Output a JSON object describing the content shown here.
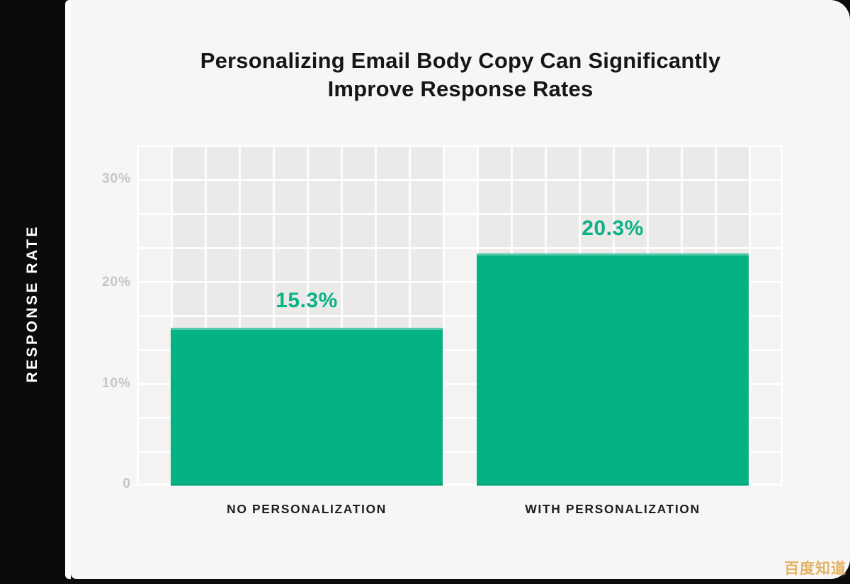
{
  "title": {
    "line1": "Personalizing Email Body Copy Can Significantly",
    "line2": "Improve Response Rates"
  },
  "y_axis": {
    "label": "RESPONSE RATE",
    "ticks": [
      {
        "label": "30%"
      },
      {
        "label": "20%"
      },
      {
        "label": "10%"
      },
      {
        "label": "0"
      }
    ]
  },
  "bars": [
    {
      "category": "NO PERSONALIZATION",
      "value": 15.3,
      "value_label": "15.3%"
    },
    {
      "category": "WITH PERSONALIZATION",
      "value": 20.3,
      "value_label": "20.3%"
    }
  ],
  "watermark": {
    "text": "百度知道"
  },
  "colors": {
    "background": "#0b0b0b",
    "card_bg": "#f7f6f4",
    "panel_gray": "#ebeae8",
    "grid_pad_bg": "#f4f3f1",
    "gridline": "#ffffff",
    "bar_green": "#04b284",
    "value_green": "#0bb287",
    "tick_gray": "#c6c5c3",
    "title_text": "#161616",
    "category_text": "#1f1f1f",
    "axis_label_text": "#ffffff",
    "watermark_gold": "#dfa94f"
  },
  "chart_data": {
    "type": "bar",
    "title": "Personalizing Email Body Copy Can Significantly Improve Response Rates",
    "categories": [
      "NO PERSONALIZATION",
      "WITH PERSONALIZATION"
    ],
    "values": [
      15.3,
      20.3
    ],
    "value_labels": [
      "15.3%",
      "20.3%"
    ],
    "xlabel": "",
    "ylabel": "RESPONSE RATE",
    "y_ticks": [
      "30%",
      "20%",
      "10%",
      "0"
    ],
    "ylim": [
      0,
      33.4
    ],
    "grid": true,
    "gridline_spacing_pct": 3.33,
    "legend": false,
    "bar_color": "#04b284"
  }
}
